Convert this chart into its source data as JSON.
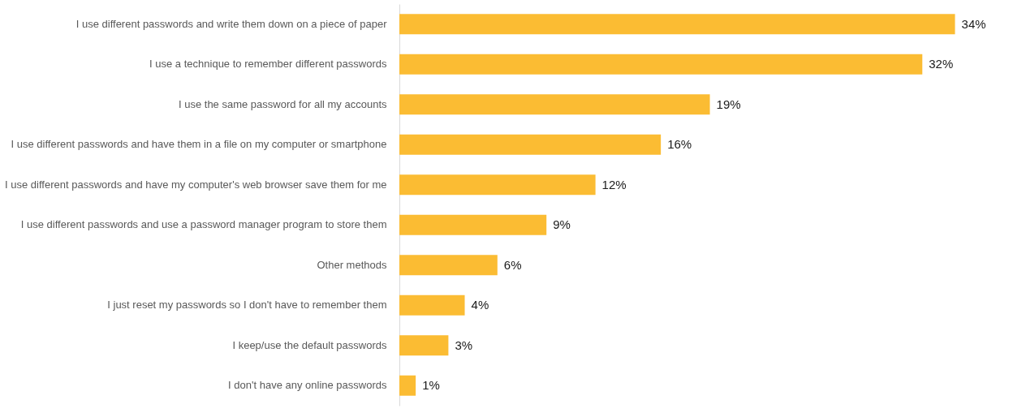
{
  "chart_data": {
    "type": "bar",
    "orientation": "horizontal",
    "color": "#fbbc33",
    "categories": [
      "I use different passwords and write them down on a piece of paper",
      "I use a technique to remember different passwords",
      "I use the same password for all my accounts",
      "I use different passwords and have them in a file on my computer or smartphone",
      "I use different passwords and have my computer's web browser save them for me",
      "I use different passwords and use a password manager program to store them",
      "Other methods",
      "I just reset my passwords so I don't have to remember them",
      "I keep/use the default passwords",
      "I don't have any online passwords"
    ],
    "values": [
      34,
      32,
      19,
      16,
      12,
      9,
      6,
      4,
      3,
      1
    ],
    "value_labels": [
      "34%",
      "32%",
      "19%",
      "16%",
      "12%",
      "9%",
      "6%",
      "4%",
      "3%",
      "1%"
    ]
  }
}
